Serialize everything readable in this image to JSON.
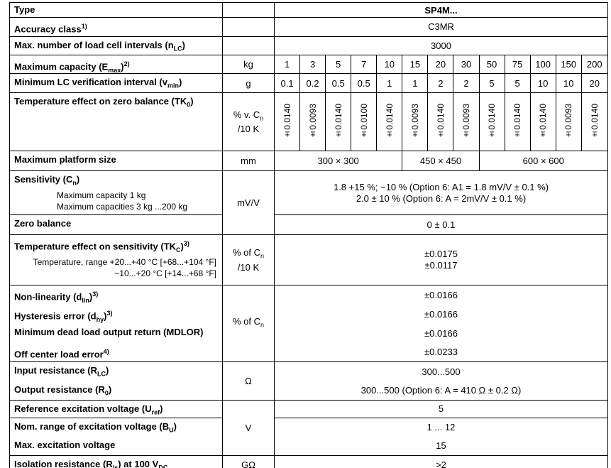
{
  "table": {
    "header": {
      "label": "Type",
      "value": "SP4M..."
    },
    "rows": [
      {
        "items": [
          {
            "label": [
              {
                "t": "Accuracy class"
              },
              {
                "sup": "1)"
              }
            ],
            "lines": [
              "C3MR"
            ]
          }
        ]
      },
      {
        "items": [
          {
            "label": [
              {
                "t": "Max. number of load cell intervals (n"
              },
              {
                "sub": "LC"
              },
              {
                "t": ")"
              }
            ],
            "lines": [
              "3000"
            ]
          }
        ]
      },
      {
        "unit": [
          [
            {
              "t": "kg"
            }
          ]
        ],
        "items": [
          {
            "label": [
              {
                "t": "Maximum capacity (E"
              },
              {
                "sub": "max"
              },
              {
                "t": ")"
              },
              {
                "sup": "2)"
              }
            ],
            "values": [
              1,
              3,
              5,
              7,
              10,
              15,
              20,
              30,
              50,
              75,
              100,
              150,
              200
            ]
          }
        ]
      },
      {
        "unit": [
          [
            {
              "t": "g"
            }
          ]
        ],
        "items": [
          {
            "label": [
              {
                "t": "Minimum LC verification interval (v"
              },
              {
                "sub": "min"
              },
              {
                "t": ")"
              }
            ],
            "values": [
              0.1,
              0.2,
              0.5,
              0.5,
              1,
              1,
              2,
              2,
              5,
              5,
              10,
              10,
              20
            ]
          }
        ]
      },
      {
        "unit": [
          [
            {
              "t": "% v. C"
            },
            {
              "sub": "n"
            }
          ],
          [
            {
              "t": "/10 K"
            }
          ]
        ],
        "items": [
          {
            "label": [
              {
                "t": "Temperature effect on zero balance (TK"
              },
              {
                "sub": "0"
              },
              {
                "t": ")"
              }
            ],
            "values": [
              "±0.0140",
              "±0.0093",
              "±0.0140",
              "±0.0100",
              "±0.0140",
              "±0.0093",
              "±0.0140",
              "±0.0093",
              "±0.0140",
              "±0.0140",
              "±0.0140",
              "±0.0093",
              "±0.0140"
            ]
          }
        ]
      },
      {
        "unit": [
          [
            {
              "t": "mm"
            }
          ]
        ],
        "items": [
          {
            "label": [
              {
                "t": "Maximum platform size"
              }
            ],
            "spans": [
              "300 × 300",
              "450 × 450",
              "600 × 600"
            ]
          }
        ]
      },
      {
        "unit": [
          [
            {
              "t": "mV/V"
            }
          ]
        ],
        "items": [
          {
            "label": [
              {
                "t": "Sensitivity (C"
              },
              {
                "sub": "n"
              },
              {
                "t": ")"
              }
            ],
            "details": [
              "Maximum capacity 1 kg",
              "Maximum capacities 3 kg ...200 kg"
            ],
            "lines": [
              "1.8 +15 %; −10 % (Option 6: A1 = 1.8 mV/V ± 0.1 %)",
              "2.0 ± 10 % (Option 6: A = 2mV/V ± 0.1 %)"
            ]
          },
          {
            "label": [
              {
                "t": "Zero balance"
              }
            ],
            "lines": [
              "0 ± 0.1"
            ]
          }
        ]
      },
      {
        "unit": [
          [
            {
              "t": "% of C"
            },
            {
              "sub": "n"
            }
          ],
          [
            {
              "t": "/10 K"
            }
          ]
        ],
        "items": [
          {
            "label": [
              {
                "t": "Temperature effect on sensitivity (TK"
              },
              {
                "sub": "C"
              },
              {
                "t": ")"
              },
              {
                "sup": "3)"
              }
            ],
            "details": [
              "Temperature, range +20...+40 °C [+68...+104 °F]",
              "−10...+20 °C [+14...+68 °F]"
            ],
            "lines": [
              "±0.0175",
              "±0.0117"
            ]
          }
        ]
      },
      {
        "unit": [
          [
            {
              "t": "% of C"
            },
            {
              "sub": "n"
            }
          ]
        ],
        "items": [
          {
            "label": [
              {
                "t": "Non-linearity (d"
              },
              {
                "sub": "lin"
              },
              {
                "t": ")"
              },
              {
                "sup": "3)"
              }
            ],
            "lines": [
              "±0.0166"
            ]
          },
          {
            "label": [
              {
                "t": "Hysteresis error (d"
              },
              {
                "sub": "hy"
              },
              {
                "t": ")"
              },
              {
                "sup": "3)"
              }
            ],
            "lines": [
              "±0.0166"
            ]
          },
          {
            "label": [
              {
                "t": "Minimum dead load output return (MDLOR)"
              }
            ],
            "lines": [
              "±0.0166"
            ]
          },
          {
            "label": [
              {
                "t": "Off center load error"
              },
              {
                "sup": "4)"
              }
            ],
            "lines": [
              "±0.0233"
            ]
          }
        ]
      },
      {
        "unit": [
          [
            {
              "t": "Ω"
            }
          ]
        ],
        "items": [
          {
            "label": [
              {
                "t": "Input resistance (R"
              },
              {
                "sub": "LC"
              },
              {
                "t": ")"
              }
            ],
            "lines": [
              "300...500"
            ]
          },
          {
            "label": [
              {
                "t": "Output resistance (R"
              },
              {
                "sub": "0"
              },
              {
                "t": ")"
              }
            ],
            "lines": [
              "300...500 (Option 6: A = 410 Ω ± 0.2 Ω)"
            ]
          }
        ]
      },
      {
        "unit": [
          [
            {
              "t": "V"
            }
          ]
        ],
        "items": [
          {
            "label": [
              {
                "t": "Reference excitation voltage (U"
              },
              {
                "sub": "ref"
              },
              {
                "t": ")"
              }
            ],
            "lines": [
              "5"
            ]
          },
          {
            "label": [
              {
                "t": "Nom. range of excitation voltage (B"
              },
              {
                "sub": "U"
              },
              {
                "t": ")"
              }
            ],
            "lines": [
              "1 ... 12"
            ]
          },
          {
            "label": [
              {
                "t": "Max. excitation voltage"
              }
            ],
            "lines": [
              "15"
            ]
          }
        ]
      },
      {
        "unit": [
          [
            {
              "t": "GΩ"
            }
          ]
        ],
        "items": [
          {
            "label": [
              {
                "t": "Isolation resistance (R"
              },
              {
                "sub": "is"
              },
              {
                "t": ") at 100 V"
              },
              {
                "sub": "DC"
              }
            ],
            "lines": [
              ">2"
            ]
          }
        ]
      }
    ]
  }
}
